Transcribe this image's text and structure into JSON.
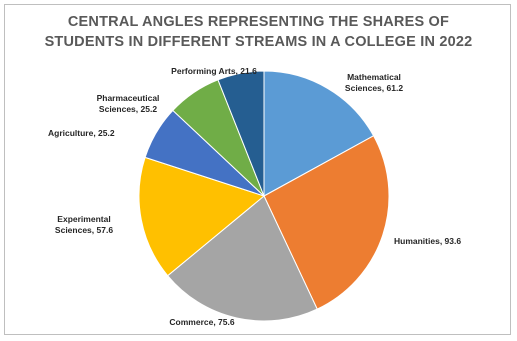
{
  "chart_data": {
    "type": "pie",
    "title_lines": [
      "CENTRAL ANGLES REPRESENTING THE SHARES OF",
      "STUDENTS IN DIFFERENT STREAMS IN A COLLEGE IN 2022"
    ],
    "slices": [
      {
        "label_lines": [
          "Mathematical",
          "Sciences, 61.2"
        ],
        "value": 61.2,
        "color": "#5b9bd5"
      },
      {
        "label_lines": [
          "Humanities, 93.6"
        ],
        "value": 93.6,
        "color": "#ed7d31"
      },
      {
        "label_lines": [
          "Commerce, 75.6"
        ],
        "value": 75.6,
        "color": "#a5a5a5"
      },
      {
        "label_lines": [
          "Experimental",
          "Sciences, 57.6"
        ],
        "value": 57.6,
        "color": "#ffc000"
      },
      {
        "label_lines": [
          "Agriculture, 25.2"
        ],
        "value": 25.2,
        "color": "#4472c4"
      },
      {
        "label_lines": [
          "Pharmaceutical",
          "Sciences, 25.2"
        ],
        "value": 25.2,
        "color": "#70ad47"
      },
      {
        "label_lines": [
          "Performing Arts, 21.6"
        ],
        "value": 21.6,
        "color": "#255e91"
      }
    ]
  }
}
